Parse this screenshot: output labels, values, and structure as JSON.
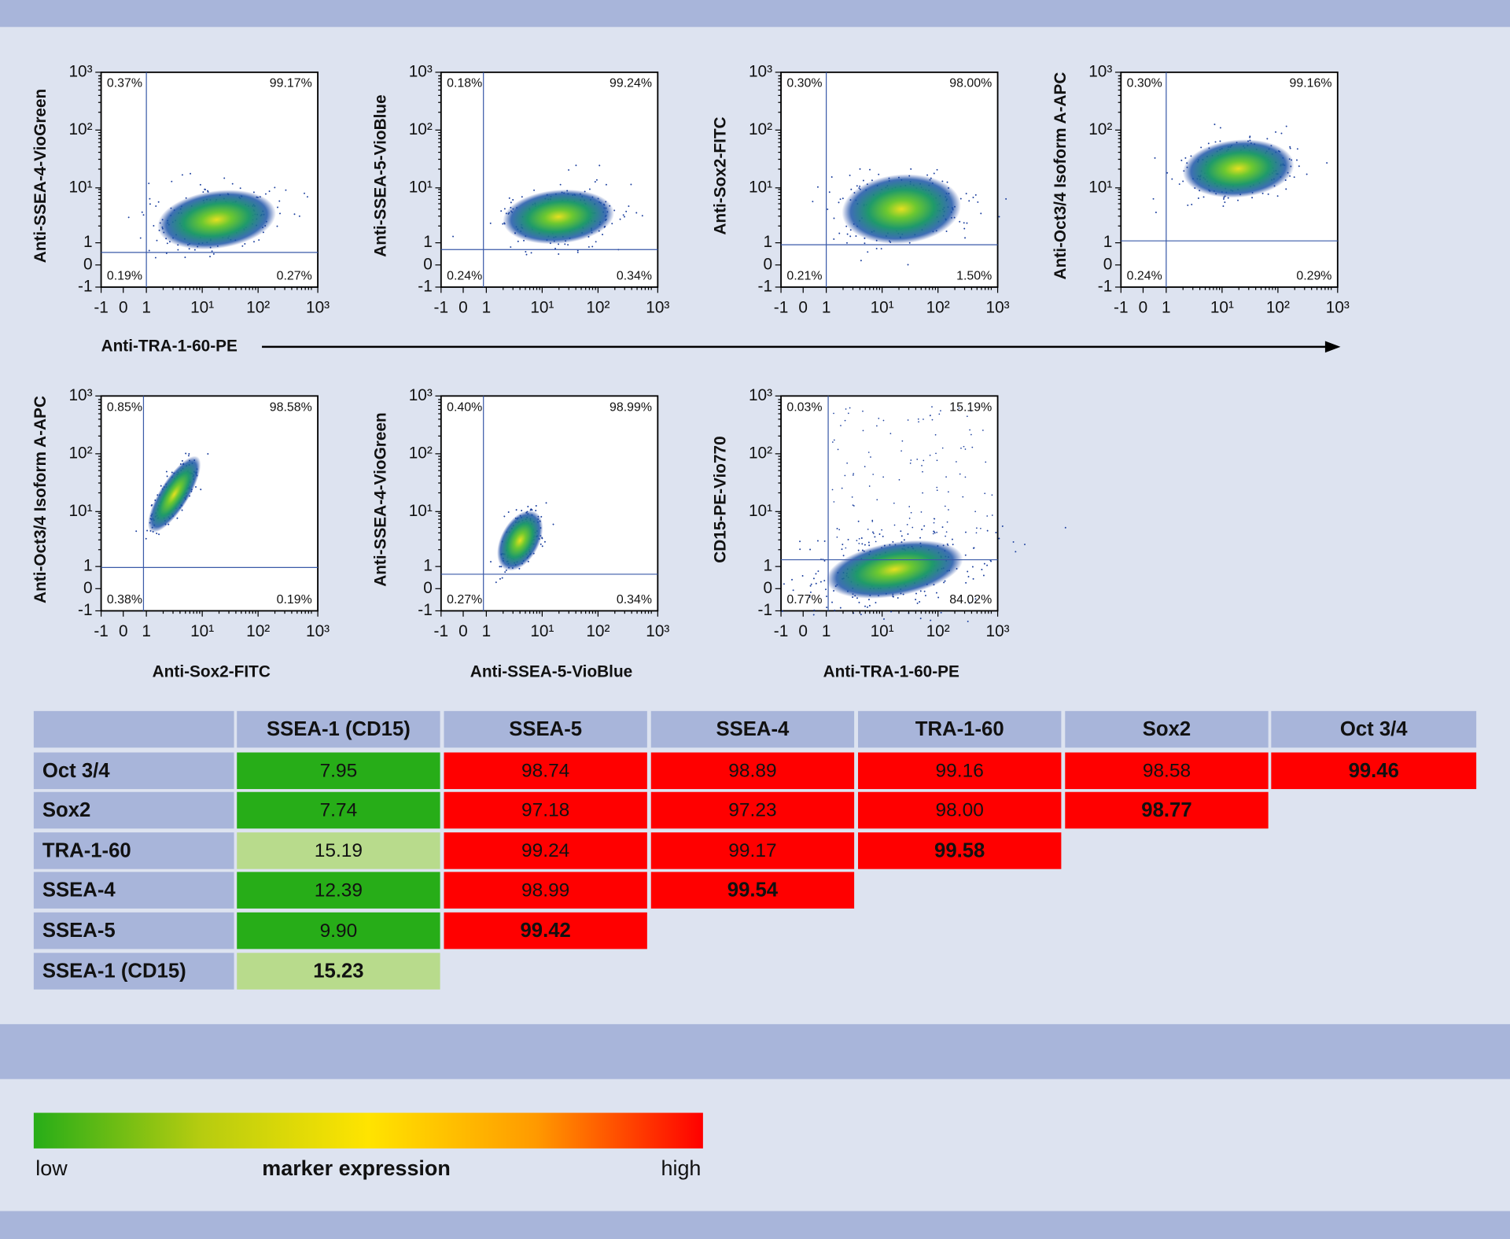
{
  "axis_ticks": {
    "x": [
      "-1",
      "0",
      "1",
      "10¹",
      "10²",
      "10³"
    ],
    "y": [
      "10³",
      "10²",
      "10¹",
      "1",
      "0",
      "-1"
    ]
  },
  "row1_x_label": "Anti-TRA-1-60-PE",
  "plots": [
    {
      "y_label": "Anti-SSEA-4-VioGreen",
      "quadrants": [
        "0.37%",
        "99.17%",
        "0.19%",
        "0.27%"
      ]
    },
    {
      "y_label": "Anti-SSEA-5-VioBlue",
      "quadrants": [
        "0.18%",
        "99.24%",
        "0.24%",
        "0.34%"
      ]
    },
    {
      "y_label": "Anti-Sox2-FITC",
      "quadrants": [
        "0.30%",
        "98.00%",
        "0.21%",
        "1.50%"
      ]
    },
    {
      "y_label": "Anti-Oct3/4 Isoform A-APC",
      "quadrants": [
        "0.30%",
        "99.16%",
        "0.24%",
        "0.29%"
      ]
    },
    {
      "y_label": "Anti-Oct3/4 Isoform A-APC",
      "x_label": "Anti-Sox2-FITC",
      "quadrants": [
        "0.85%",
        "98.58%",
        "0.38%",
        "0.19%"
      ]
    },
    {
      "y_label": "Anti-SSEA-4-VioGreen",
      "x_label": "Anti-SSEA-5-VioBlue",
      "quadrants": [
        "0.40%",
        "98.99%",
        "0.27%",
        "0.34%"
      ]
    },
    {
      "y_label": "CD15-PE-Vio770",
      "x_label": "Anti-TRA-1-60-PE",
      "quadrants": [
        "0.03%",
        "15.19%",
        "0.77%",
        "84.02%"
      ]
    }
  ],
  "table": {
    "columns": [
      "SSEA-1 (CD15)",
      "SSEA-5",
      "SSEA-4",
      "TRA-1-60",
      "Sox2",
      "Oct 3/4"
    ],
    "rows": [
      {
        "label": "Oct 3/4",
        "cells": [
          "7.95",
          "98.74",
          "98.89",
          "99.16",
          "98.58",
          "99.46"
        ],
        "colors": [
          "#27ad18",
          "#ff0000",
          "#ff0000",
          "#ff0000",
          "#ff0000",
          "#ff0000"
        ]
      },
      {
        "label": "Sox2",
        "cells": [
          "7.74",
          "97.18",
          "97.23",
          "98.00",
          "98.77"
        ],
        "colors": [
          "#27ad18",
          "#ff0000",
          "#ff0000",
          "#ff0000",
          "#ff0000"
        ]
      },
      {
        "label": "TRA-1-60",
        "cells": [
          "15.19",
          "99.24",
          "99.17",
          "99.58"
        ],
        "colors": [
          "#b8db8c",
          "#ff0000",
          "#ff0000",
          "#ff0000"
        ]
      },
      {
        "label": "SSEA-4",
        "cells": [
          "12.39",
          "98.99",
          "99.54"
        ],
        "colors": [
          "#27ad18",
          "#ff0000",
          "#ff0000"
        ]
      },
      {
        "label": "SSEA-5",
        "cells": [
          "9.90",
          "99.42"
        ],
        "colors": [
          "#27ad18",
          "#ff0000"
        ]
      },
      {
        "label": "SSEA-1 (CD15)",
        "cells": [
          "15.23"
        ],
        "colors": [
          "#b8db8c"
        ]
      }
    ]
  },
  "legend": {
    "low": "low",
    "title": "marker expression",
    "high": "high",
    "colors": [
      "#27ad18",
      "#b6cc10",
      "#ffe400",
      "#ff9a00",
      "#ff0000"
    ]
  }
}
